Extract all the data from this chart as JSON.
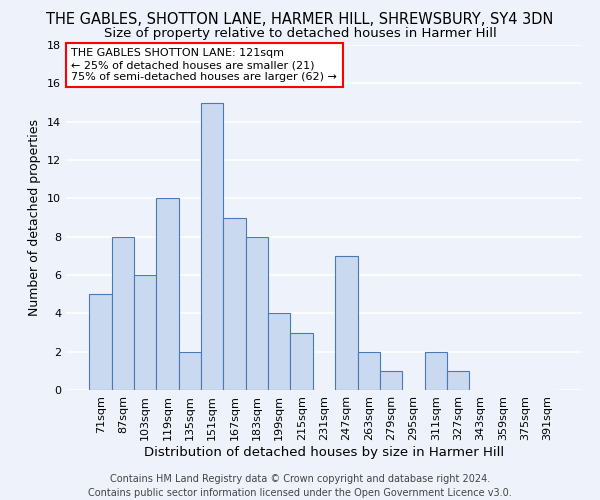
{
  "title": "THE GABLES, SHOTTON LANE, HARMER HILL, SHREWSBURY, SY4 3DN",
  "subtitle": "Size of property relative to detached houses in Harmer Hill",
  "xlabel": "Distribution of detached houses by size in Harmer Hill",
  "ylabel": "Number of detached properties",
  "bin_labels": [
    "71sqm",
    "87sqm",
    "103sqm",
    "119sqm",
    "135sqm",
    "151sqm",
    "167sqm",
    "183sqm",
    "199sqm",
    "215sqm",
    "231sqm",
    "247sqm",
    "263sqm",
    "279sqm",
    "295sqm",
    "311sqm",
    "327sqm",
    "343sqm",
    "359sqm",
    "375sqm",
    "391sqm"
  ],
  "bar_values": [
    5,
    8,
    6,
    10,
    2,
    15,
    9,
    8,
    4,
    3,
    0,
    7,
    2,
    1,
    0,
    2,
    1,
    0,
    0,
    0,
    0
  ],
  "bar_color": "#c9d9f0",
  "bar_edge_color": "#4a7ab5",
  "ylim": [
    0,
    18
  ],
  "yticks": [
    0,
    2,
    4,
    6,
    8,
    10,
    12,
    14,
    16,
    18
  ],
  "annotation_box_text": "THE GABLES SHOTTON LANE: 121sqm\n← 25% of detached houses are smaller (21)\n75% of semi-detached houses are larger (62) →",
  "footer_text": "Contains HM Land Registry data © Crown copyright and database right 2024.\nContains public sector information licensed under the Open Government Licence v3.0.",
  "bg_color": "#eef2fa",
  "grid_color": "#ffffff",
  "title_fontsize": 10.5,
  "subtitle_fontsize": 9.5,
  "xlabel_fontsize": 9.5,
  "ylabel_fontsize": 9,
  "tick_fontsize": 8,
  "annot_fontsize": 8,
  "footer_fontsize": 7
}
